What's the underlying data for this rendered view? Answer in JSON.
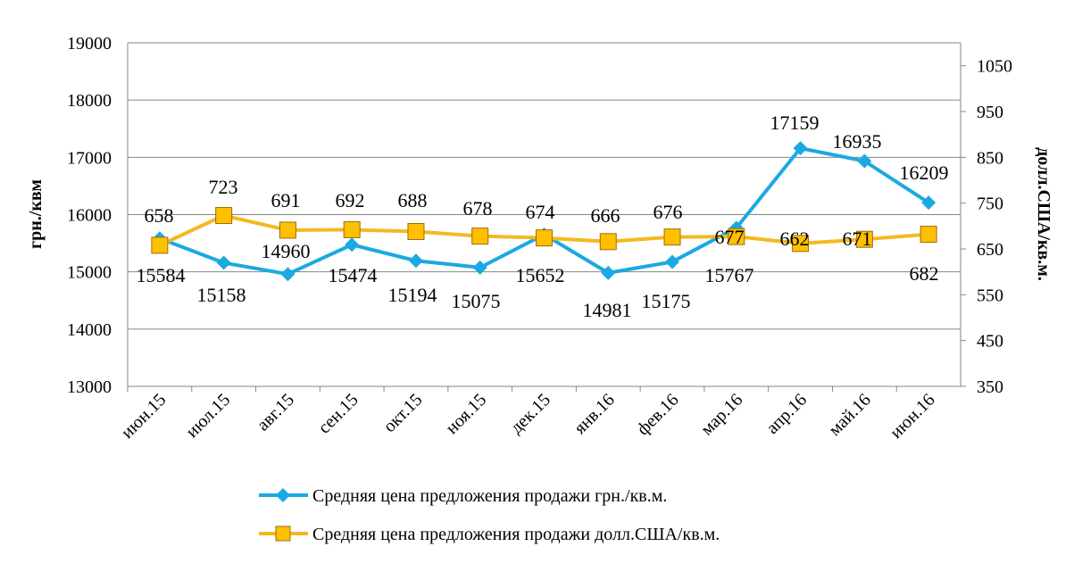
{
  "chart_data": {
    "type": "line",
    "categories": [
      "июн.15",
      "июл.15",
      "авг.15",
      "сен.15",
      "окт.15",
      "ноя.15",
      "дек.15",
      "янв.16",
      "фев.16",
      "мар.16",
      "апр.16",
      "май.16",
      "июн.16"
    ],
    "series": [
      {
        "name": "Средняя цена предложения продажи грн./кв.м.",
        "axis": "left",
        "color": "#1BA9E1",
        "marker": "diamond",
        "values": [
          15584,
          15158,
          14960,
          15474,
          15194,
          15075,
          15652,
          14981,
          15175,
          15767,
          17159,
          16935,
          16209
        ]
      },
      {
        "name": "Средняя цена предложения продажи долл.США/кв.м.",
        "axis": "right",
        "color": "#F4B921",
        "marker": "square",
        "values": [
          658,
          723,
          691,
          692,
          688,
          678,
          674,
          666,
          676,
          677,
          662,
          671,
          682
        ]
      }
    ],
    "ylabel": "грн./квм",
    "y2label": "долл.США/кв.м.",
    "ylim": [
      13000,
      19000
    ],
    "y2lim": [
      350,
      1100
    ],
    "yticks": [
      13000,
      14000,
      15000,
      16000,
      17000,
      18000,
      19000
    ],
    "y2ticks": [
      350,
      450,
      550,
      650,
      750,
      850,
      950,
      1050
    ],
    "grid": true,
    "legend": "bottom"
  }
}
